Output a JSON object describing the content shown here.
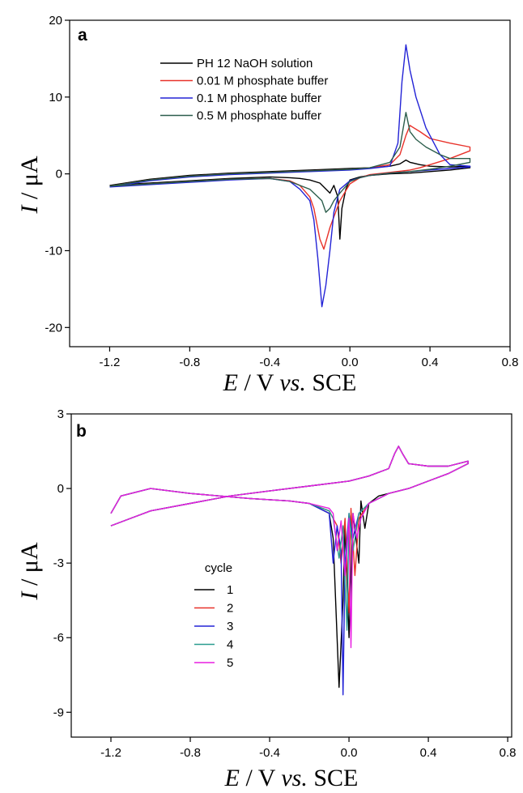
{
  "chart_data": [
    {
      "type": "line",
      "panel": "a",
      "xlabel": {
        "var": "E",
        "unit": " / V ",
        "vs": "vs.",
        "ref": " SCE"
      },
      "ylabel": {
        "var": "I",
        "unit": " / μA"
      },
      "xlim": [
        -1.4,
        0.8
      ],
      "ylim": [
        -22.5,
        20
      ],
      "xticks": [
        "-1.2",
        "-0.8",
        "-0.4",
        "0.0",
        "0.4",
        "0.8"
      ],
      "xtick_values": [
        -1.2,
        -0.8,
        -0.4,
        0.0,
        0.4,
        0.8
      ],
      "yticks": [
        "20",
        "10",
        "0",
        "-10",
        "-20"
      ],
      "ytick_values": [
        20,
        10,
        0,
        -10,
        -20
      ],
      "legend_position": "top-center",
      "series": [
        {
          "name": "PH  12 NaOH solution",
          "color": "#000000",
          "x": [
            -1.2,
            -1.0,
            -0.8,
            -0.6,
            -0.4,
            -0.2,
            0.0,
            0.1,
            0.2,
            0.25,
            0.28,
            0.3,
            0.35,
            0.4,
            0.5,
            0.6,
            0.6,
            0.5,
            0.4,
            0.35,
            0.3,
            0.2,
            0.1,
            0.05,
            0.0,
            -0.02,
            -0.04,
            -0.05,
            -0.06,
            -0.08,
            -0.1,
            -0.15,
            -0.2,
            -0.25,
            -0.3,
            -0.4,
            -0.6,
            -0.8,
            -1.0,
            -1.2
          ],
          "y": [
            -1.5,
            -0.7,
            -0.2,
            0.1,
            0.3,
            0.5,
            0.7,
            0.8,
            1.0,
            1.3,
            1.8,
            1.5,
            1.2,
            1.0,
            0.9,
            1.0,
            0.8,
            0.5,
            0.3,
            0.2,
            0.1,
            0.0,
            -0.2,
            -0.4,
            -0.8,
            -2.0,
            -4.5,
            -8.5,
            -3.0,
            -1.5,
            -2.5,
            -1.2,
            -0.8,
            -0.6,
            -0.5,
            -0.4,
            -0.6,
            -0.9,
            -1.2,
            -1.5
          ]
        },
        {
          "name": "0.01 M phosphate buffer",
          "color": "#e8322a",
          "x": [
            -1.2,
            -1.0,
            -0.8,
            -0.6,
            -0.4,
            -0.2,
            0.0,
            0.1,
            0.2,
            0.25,
            0.28,
            0.3,
            0.35,
            0.4,
            0.5,
            0.6,
            0.6,
            0.5,
            0.4,
            0.35,
            0.3,
            0.2,
            0.1,
            0.05,
            0.0,
            -0.05,
            -0.1,
            -0.13,
            -0.15,
            -0.18,
            -0.2,
            -0.25,
            -0.3,
            -0.4,
            -0.6,
            -0.8,
            -1.0,
            -1.2
          ],
          "y": [
            -1.6,
            -0.8,
            -0.3,
            0.0,
            0.2,
            0.4,
            0.6,
            0.8,
            1.2,
            2.5,
            5.0,
            6.3,
            5.5,
            4.6,
            4.0,
            3.5,
            3.0,
            2.0,
            1.2,
            0.8,
            0.5,
            0.2,
            -0.1,
            -0.5,
            -1.3,
            -3.5,
            -7.0,
            -9.8,
            -8.5,
            -4.5,
            -3.0,
            -1.5,
            -0.9,
            -0.6,
            -0.7,
            -1.0,
            -1.3,
            -1.6
          ]
        },
        {
          "name": "0.1 M phosphate buffer",
          "color": "#2323d6",
          "x": [
            -1.2,
            -1.0,
            -0.8,
            -0.6,
            -0.4,
            -0.2,
            0.0,
            0.1,
            0.2,
            0.24,
            0.26,
            0.28,
            0.3,
            0.33,
            0.38,
            0.45,
            0.5,
            0.6,
            0.6,
            0.5,
            0.4,
            0.3,
            0.2,
            0.1,
            0.05,
            0.0,
            -0.05,
            -0.08,
            -0.1,
            -0.12,
            -0.14,
            -0.16,
            -0.18,
            -0.2,
            -0.25,
            -0.3,
            -0.4,
            -0.6,
            -0.8,
            -1.0,
            -1.2
          ],
          "y": [
            -1.7,
            -0.9,
            -0.4,
            -0.1,
            0.1,
            0.3,
            0.5,
            0.7,
            1.0,
            4.0,
            12.0,
            16.8,
            13.5,
            10.0,
            6.0,
            2.5,
            1.2,
            1.0,
            0.9,
            0.7,
            0.5,
            0.3,
            0.1,
            -0.2,
            -0.5,
            -0.9,
            -2.0,
            -5.0,
            -10.0,
            -14.5,
            -17.3,
            -11.0,
            -6.0,
            -3.5,
            -2.0,
            -1.0,
            -0.6,
            -0.8,
            -1.1,
            -1.4,
            -1.7
          ]
        },
        {
          "name": "0.5 M phosphate buffer",
          "color": "#2c5e4c",
          "x": [
            -1.2,
            -1.0,
            -0.8,
            -0.6,
            -0.4,
            -0.2,
            0.0,
            0.1,
            0.2,
            0.25,
            0.28,
            0.3,
            0.33,
            0.38,
            0.45,
            0.5,
            0.6,
            0.6,
            0.5,
            0.4,
            0.3,
            0.2,
            0.1,
            0.05,
            0.0,
            -0.05,
            -0.08,
            -0.1,
            -0.12,
            -0.14,
            -0.2,
            -0.3,
            -0.4,
            -0.6,
            -0.8,
            -1.0,
            -1.2
          ],
          "y": [
            -1.6,
            -0.8,
            -0.3,
            0.0,
            0.2,
            0.4,
            0.6,
            0.8,
            1.5,
            3.5,
            8.0,
            5.5,
            4.5,
            3.5,
            2.5,
            2.0,
            2.0,
            1.5,
            1.0,
            0.6,
            0.3,
            0.1,
            -0.2,
            -0.5,
            -1.0,
            -2.5,
            -3.5,
            -4.5,
            -5.0,
            -3.5,
            -2.0,
            -1.0,
            -0.6,
            -0.7,
            -1.0,
            -1.3,
            -1.6
          ]
        }
      ]
    },
    {
      "type": "line",
      "panel": "b",
      "xlabel": {
        "var": "E",
        "unit": " / V ",
        "vs": "vs.",
        "ref": " SCE"
      },
      "ylabel": {
        "var": "I",
        "unit": " / μA"
      },
      "xlim": [
        -1.4,
        0.82
      ],
      "ylim": [
        -10,
        3
      ],
      "xticks": [
        "-1.2",
        "-0.8",
        "-0.4",
        "0.0",
        "0.4",
        "0.8"
      ],
      "xtick_values": [
        -1.2,
        -0.8,
        -0.4,
        0.0,
        0.4,
        0.8
      ],
      "yticks": [
        "3",
        "0",
        "-3",
        "-6",
        "-9"
      ],
      "ytick_values": [
        3,
        0,
        -3,
        -6,
        -9
      ],
      "legend_title": "cycle",
      "legend_position": "lower-left",
      "series": [
        {
          "name": "1",
          "color": "#000000",
          "x": [
            -1.2,
            -1.1,
            -1.0,
            -0.8,
            -0.6,
            -0.4,
            -0.2,
            0.0,
            0.1,
            0.2,
            0.23,
            0.25,
            0.27,
            0.3,
            0.4,
            0.5,
            0.6,
            0.6,
            0.5,
            0.4,
            0.3,
            0.2,
            0.15,
            0.1,
            0.08,
            0.06,
            0.05,
            0.02,
            0.0,
            -0.02,
            -0.03,
            -0.05,
            -0.08,
            -0.1,
            -0.2,
            -0.3,
            -0.5,
            -0.8,
            -1.0,
            -1.15,
            -1.2
          ],
          "y": [
            -1.5,
            -1.2,
            -0.9,
            -0.6,
            -0.3,
            -0.1,
            0.1,
            0.3,
            0.5,
            0.8,
            1.4,
            1.7,
            1.4,
            1.0,
            0.9,
            0.9,
            1.1,
            1.0,
            0.6,
            0.3,
            0.0,
            -0.2,
            -0.3,
            -0.6,
            -1.6,
            -0.5,
            -3.0,
            -1.0,
            -6.0,
            -1.5,
            -4.5,
            -8.0,
            -2.0,
            -1.0,
            -0.6,
            -0.5,
            -0.4,
            -0.2,
            0.0,
            -0.3,
            -1.0
          ]
        },
        {
          "name": "2",
          "color": "#e8322a",
          "x": [
            -1.2,
            -1.1,
            -1.0,
            -0.8,
            -0.6,
            -0.4,
            -0.2,
            0.0,
            0.1,
            0.2,
            0.23,
            0.25,
            0.27,
            0.3,
            0.4,
            0.5,
            0.6,
            0.6,
            0.5,
            0.4,
            0.3,
            0.2,
            0.1,
            0.05,
            0.03,
            0.01,
            0.0,
            -0.02,
            -0.04,
            -0.06,
            -0.1,
            -0.2,
            -0.3,
            -0.5,
            -0.8,
            -1.0,
            -1.15,
            -1.2
          ],
          "y": [
            -1.5,
            -1.2,
            -0.9,
            -0.6,
            -0.3,
            -0.1,
            0.1,
            0.3,
            0.5,
            0.8,
            1.4,
            1.7,
            1.4,
            1.0,
            0.9,
            0.9,
            1.1,
            1.0,
            0.6,
            0.3,
            0.0,
            -0.2,
            -0.6,
            -1.2,
            -3.5,
            -0.8,
            -5.0,
            -1.2,
            -3.0,
            -1.5,
            -0.9,
            -0.6,
            -0.5,
            -0.4,
            -0.2,
            0.0,
            -0.3,
            -1.0
          ]
        },
        {
          "name": "3",
          "color": "#2323d6",
          "x": [
            -1.2,
            -1.1,
            -1.0,
            -0.8,
            -0.6,
            -0.4,
            -0.2,
            0.0,
            0.1,
            0.2,
            0.23,
            0.25,
            0.27,
            0.3,
            0.4,
            0.5,
            0.6,
            0.6,
            0.5,
            0.4,
            0.3,
            0.2,
            0.1,
            0.05,
            0.02,
            0.0,
            -0.02,
            -0.03,
            -0.04,
            -0.06,
            -0.08,
            -0.1,
            -0.2,
            -0.3,
            -0.5,
            -0.8,
            -1.0,
            -1.15,
            -1.2
          ],
          "y": [
            -1.5,
            -1.2,
            -0.9,
            -0.6,
            -0.3,
            -0.1,
            0.1,
            0.3,
            0.5,
            0.8,
            1.4,
            1.7,
            1.4,
            1.0,
            0.9,
            0.9,
            1.1,
            1.0,
            0.6,
            0.3,
            0.0,
            -0.2,
            -0.6,
            -1.0,
            -2.0,
            -1.0,
            -3.0,
            -8.3,
            -2.5,
            -1.5,
            -3.0,
            -1.0,
            -0.6,
            -0.5,
            -0.4,
            -0.2,
            0.0,
            -0.3,
            -1.0
          ]
        },
        {
          "name": "4",
          "color": "#2a9d8f",
          "x": [
            -1.2,
            -1.1,
            -1.0,
            -0.8,
            -0.6,
            -0.4,
            -0.2,
            0.0,
            0.1,
            0.2,
            0.23,
            0.25,
            0.27,
            0.3,
            0.4,
            0.5,
            0.6,
            0.6,
            0.5,
            0.4,
            0.3,
            0.2,
            0.1,
            0.05,
            0.02,
            0.0,
            -0.01,
            -0.03,
            -0.05,
            -0.08,
            -0.1,
            -0.2,
            -0.3,
            -0.5,
            -0.8,
            -1.0,
            -1.15,
            -1.2
          ],
          "y": [
            -1.5,
            -1.2,
            -0.9,
            -0.6,
            -0.3,
            -0.1,
            0.1,
            0.3,
            0.5,
            0.8,
            1.4,
            1.7,
            1.4,
            1.0,
            0.9,
            0.9,
            1.1,
            1.0,
            0.6,
            0.3,
            0.0,
            -0.2,
            -0.6,
            -1.0,
            -2.5,
            -1.0,
            -5.7,
            -1.5,
            -2.8,
            -1.2,
            -0.9,
            -0.6,
            -0.5,
            -0.4,
            -0.2,
            0.0,
            -0.3,
            -1.0
          ]
        },
        {
          "name": "5",
          "color": "#e81ee0",
          "x": [
            -1.2,
            -1.1,
            -1.0,
            -0.8,
            -0.6,
            -0.4,
            -0.2,
            0.0,
            0.1,
            0.2,
            0.23,
            0.25,
            0.27,
            0.3,
            0.4,
            0.5,
            0.6,
            0.6,
            0.5,
            0.4,
            0.3,
            0.2,
            0.1,
            0.06,
            0.04,
            0.02,
            0.01,
            0.0,
            -0.02,
            -0.04,
            -0.06,
            -0.08,
            -0.1,
            -0.2,
            -0.3,
            -0.5,
            -0.8,
            -1.0,
            -1.15,
            -1.2
          ],
          "y": [
            -1.5,
            -1.2,
            -0.9,
            -0.6,
            -0.3,
            -0.1,
            0.1,
            0.3,
            0.5,
            0.8,
            1.4,
            1.7,
            1.4,
            1.0,
            0.9,
            0.9,
            1.1,
            1.0,
            0.6,
            0.3,
            0.0,
            -0.2,
            -0.6,
            -1.2,
            -2.0,
            -1.0,
            -6.4,
            -1.2,
            -3.5,
            -1.3,
            -2.5,
            -1.0,
            -0.8,
            -0.6,
            -0.5,
            -0.4,
            -0.2,
            0.0,
            -0.3,
            -1.0
          ]
        }
      ]
    }
  ]
}
